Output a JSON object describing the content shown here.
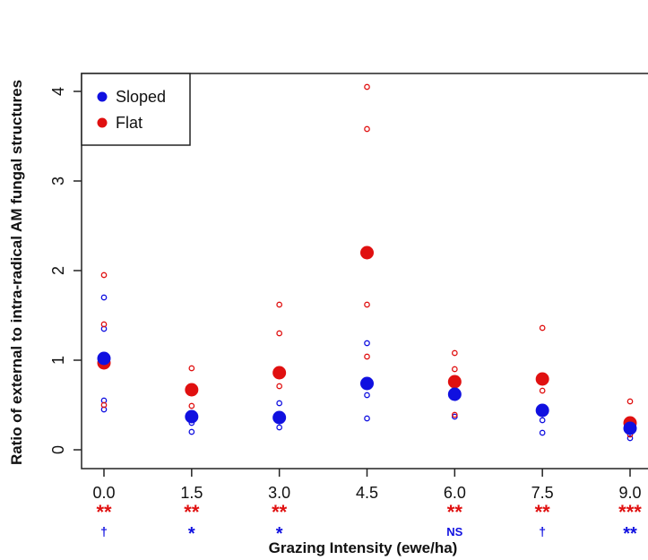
{
  "chart_data": {
    "type": "scatter",
    "xlabel": "Grazing Intensity (ewe/ha)",
    "ylabel": "Ratio of external to intra-radical AM fungal structures",
    "xlim": [
      0.0,
      9.0
    ],
    "ylim": [
      0,
      4
    ],
    "x_ticks": [
      "0.0",
      "1.5",
      "3.0",
      "4.5",
      "6.0",
      "7.5",
      "9.0"
    ],
    "y_ticks": [
      "0",
      "1",
      "2",
      "3",
      "4"
    ],
    "grid": false,
    "legend_position": "top-left",
    "legend": [
      {
        "name": "Sloped",
        "color": "#1010e0"
      },
      {
        "name": "Flat",
        "color": "#e01010"
      }
    ],
    "series": [
      {
        "name": "Sloped",
        "color": "#1010e0",
        "means": [
          {
            "x": 0.0,
            "y": 1.02
          },
          {
            "x": 1.5,
            "y": 0.37
          },
          {
            "x": 3.0,
            "y": 0.36
          },
          {
            "x": 4.5,
            "y": 0.74
          },
          {
            "x": 6.0,
            "y": 0.62
          },
          {
            "x": 7.5,
            "y": 0.44
          },
          {
            "x": 9.0,
            "y": 0.24
          }
        ],
        "observations": [
          {
            "x": 0.0,
            "y": 1.7
          },
          {
            "x": 0.0,
            "y": 1.35
          },
          {
            "x": 0.0,
            "y": 0.55
          },
          {
            "x": 0.0,
            "y": 0.45
          },
          {
            "x": 1.5,
            "y": 0.3
          },
          {
            "x": 1.5,
            "y": 0.2
          },
          {
            "x": 3.0,
            "y": 0.52
          },
          {
            "x": 3.0,
            "y": 0.25
          },
          {
            "x": 4.5,
            "y": 1.19
          },
          {
            "x": 4.5,
            "y": 0.61
          },
          {
            "x": 4.5,
            "y": 0.35
          },
          {
            "x": 6.0,
            "y": 0.37
          },
          {
            "x": 7.5,
            "y": 0.33
          },
          {
            "x": 7.5,
            "y": 0.19
          },
          {
            "x": 9.0,
            "y": 0.13
          }
        ]
      },
      {
        "name": "Flat",
        "color": "#e01010",
        "means": [
          {
            "x": 0.0,
            "y": 0.97
          },
          {
            "x": 1.5,
            "y": 0.67
          },
          {
            "x": 3.0,
            "y": 0.86
          },
          {
            "x": 4.5,
            "y": 2.2
          },
          {
            "x": 6.0,
            "y": 0.76
          },
          {
            "x": 7.5,
            "y": 0.79
          },
          {
            "x": 9.0,
            "y": 0.3
          }
        ],
        "observations": [
          {
            "x": 0.0,
            "y": 1.95
          },
          {
            "x": 0.0,
            "y": 1.4
          },
          {
            "x": 0.0,
            "y": 0.5
          },
          {
            "x": 1.5,
            "y": 0.91
          },
          {
            "x": 1.5,
            "y": 0.49
          },
          {
            "x": 3.0,
            "y": 1.62
          },
          {
            "x": 3.0,
            "y": 1.3
          },
          {
            "x": 3.0,
            "y": 0.71
          },
          {
            "x": 4.5,
            "y": 4.05
          },
          {
            "x": 4.5,
            "y": 3.58
          },
          {
            "x": 4.5,
            "y": 1.62
          },
          {
            "x": 4.5,
            "y": 1.04
          },
          {
            "x": 6.0,
            "y": 1.08
          },
          {
            "x": 6.0,
            "y": 0.9
          },
          {
            "x": 6.0,
            "y": 0.39
          },
          {
            "x": 7.5,
            "y": 1.36
          },
          {
            "x": 7.5,
            "y": 0.66
          },
          {
            "x": 9.0,
            "y": 0.54
          },
          {
            "x": 9.0,
            "y": 0.17
          }
        ]
      }
    ],
    "significance": {
      "flat": [
        "**",
        "**",
        "**",
        "",
        "**",
        "**",
        "***"
      ],
      "sloped": [
        "†",
        "*",
        "*",
        "",
        "NS",
        "†",
        "**"
      ]
    }
  }
}
